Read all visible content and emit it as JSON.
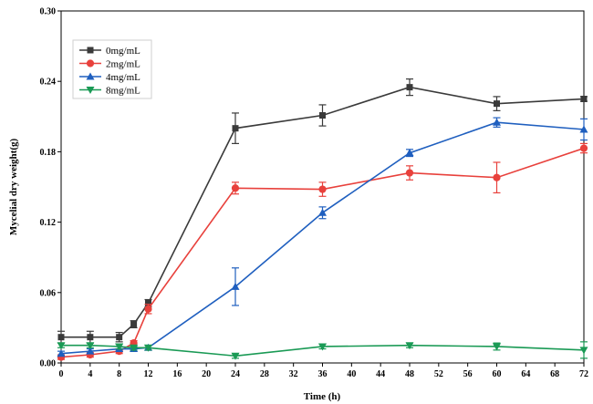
{
  "chart_data": {
    "type": "line",
    "title": "",
    "xlabel": "Time (h)",
    "ylabel": "Mycelial dry weight(g)",
    "xlim": [
      0,
      72
    ],
    "ylim": [
      0,
      0.3
    ],
    "xticks": [
      "0",
      "4",
      "8",
      "12",
      "16",
      "20",
      "24",
      "28",
      "32",
      "36",
      "40",
      "44",
      "48",
      "52",
      "56",
      "60",
      "64",
      "68",
      "72"
    ],
    "xtick_values": [
      0,
      4,
      8,
      12,
      16,
      20,
      24,
      28,
      32,
      36,
      40,
      44,
      48,
      52,
      56,
      60,
      64,
      68,
      72
    ],
    "yticks": [
      "0.00",
      "0.06",
      "0.12",
      "0.18",
      "0.24",
      "0.30"
    ],
    "ytick_values": [
      0,
      0.06,
      0.12,
      0.18,
      0.24,
      0.3
    ],
    "grid": false,
    "legend_position": "top-left",
    "series": [
      {
        "name": "0mg/mL",
        "color": "#3a3a3a",
        "marker": "square",
        "x": [
          0,
          4,
          8,
          10,
          12,
          24,
          36,
          48,
          60,
          72
        ],
        "y": [
          0.022,
          0.022,
          0.022,
          0.033,
          0.051,
          0.2,
          0.211,
          0.235,
          0.221,
          0.225
        ],
        "err": [
          0.005,
          0.005,
          0.004,
          0.003,
          0.003,
          0.013,
          0.009,
          0.007,
          0.006,
          0.002
        ]
      },
      {
        "name": "2mg/mL",
        "color": "#e8413c",
        "marker": "circle",
        "x": [
          0,
          4,
          8,
          10,
          12,
          24,
          36,
          48,
          60,
          72
        ],
        "y": [
          0.005,
          0.007,
          0.01,
          0.017,
          0.046,
          0.149,
          0.148,
          0.162,
          0.158,
          0.183
        ],
        "err": [
          0.002,
          0.002,
          0.002,
          0.002,
          0.004,
          0.005,
          0.006,
          0.006,
          0.013,
          0.004
        ]
      },
      {
        "name": "4mg/mL",
        "color": "#1f5fbf",
        "marker": "triangle-up",
        "x": [
          0,
          4,
          8,
          10,
          12,
          24,
          36,
          48,
          60,
          72
        ],
        "y": [
          0.008,
          0.01,
          0.012,
          0.012,
          0.013,
          0.065,
          0.128,
          0.179,
          0.205,
          0.199
        ],
        "err": [
          0.002,
          0.002,
          0.002,
          0.002,
          0.002,
          0.016,
          0.005,
          0.003,
          0.004,
          0.009
        ]
      },
      {
        "name": "8mg/mL",
        "color": "#1a9a55",
        "marker": "triangle-down",
        "x": [
          0,
          4,
          8,
          10,
          12,
          24,
          36,
          48,
          60,
          72
        ],
        "y": [
          0.015,
          0.015,
          0.014,
          0.013,
          0.013,
          0.006,
          0.014,
          0.015,
          0.014,
          0.011
        ],
        "err": [
          0.002,
          0.002,
          0.002,
          0.002,
          0.002,
          0.002,
          0.002,
          0.002,
          0.003,
          0.007
        ]
      }
    ]
  }
}
